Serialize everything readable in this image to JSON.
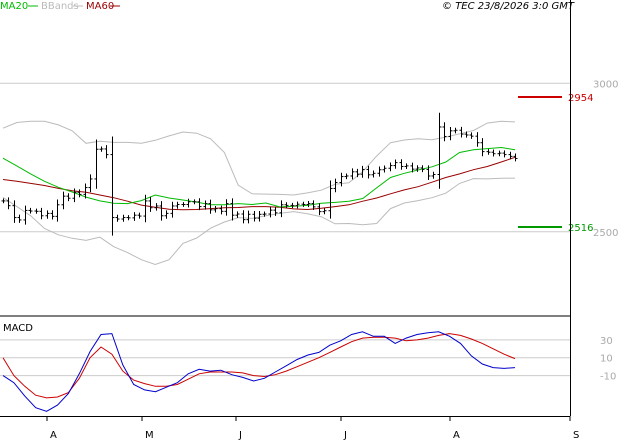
{
  "header": {
    "legend_ma20": "MA20",
    "legend_bbands": "BBands",
    "legend_ma60": "MA60",
    "copyright": "© TEC 23/8/2026 3:0 GMT"
  },
  "colors": {
    "ma20": "#00bb00",
    "ma60": "#990000",
    "bbands": "#bbbbbb",
    "price": "#000000",
    "macd": "#0000cc",
    "signal": "#cc0000",
    "resistance": "#cc0000",
    "support": "#009900",
    "grid": "#cccccc"
  },
  "chart_data": [
    {
      "type": "line",
      "title": "",
      "x_labels": [
        "A",
        "M",
        "J",
        "J",
        "A",
        "S"
      ],
      "ylim": [
        2230,
        3230
      ],
      "y_ticks": [
        "3000",
        "2500"
      ],
      "grid": true,
      "levels": [
        {
          "name": "resistance",
          "value": 2954,
          "label": "2954"
        },
        {
          "name": "support",
          "value": 2516,
          "label": "2516"
        }
      ],
      "series": [
        {
          "name": "Price",
          "kind": "ohlc-bars",
          "values": [
            2604,
            2588,
            2548,
            2540,
            2572,
            2570,
            2569,
            2554,
            2562,
            2552,
            2591,
            2620,
            2613,
            2633,
            2626,
            2649,
            2678,
            2778,
            2779,
            2760,
            2548,
            2543,
            2548,
            2547,
            2556,
            2553,
            2604,
            2581,
            2587,
            2554,
            2562,
            2587,
            2592,
            2592,
            2601,
            2601,
            2585,
            2595,
            2574,
            2578,
            2569,
            2595,
            2556,
            2560,
            2541,
            2559,
            2546,
            2559,
            2560,
            2573,
            2564,
            2591,
            2589,
            2588,
            2593,
            2592,
            2595,
            2584,
            2568,
            2571,
            2646,
            2666,
            2686,
            2688,
            2702,
            2694,
            2710,
            2692,
            2697,
            2709,
            2714,
            2723,
            2733,
            2720,
            2722,
            2711,
            2715,
            2710,
            2688,
            2693,
            2853,
            2821,
            2840,
            2842,
            2829,
            2826,
            2822,
            2800,
            2770,
            2768,
            2763,
            2765,
            2760,
            2754,
            2747
          ]
        },
        {
          "name": "MA20",
          "values": [
            2748,
            2722,
            2695,
            2670,
            2650,
            2634,
            2617,
            2604,
            2596,
            2595,
            2605,
            2624,
            2614,
            2607,
            2600,
            2591,
            2591,
            2595,
            2592,
            2597,
            2584,
            2586,
            2589,
            2596,
            2599,
            2603,
            2612,
            2648,
            2683,
            2697,
            2708,
            2719,
            2735,
            2767,
            2776,
            2780,
            2784,
            2776
          ]
        },
        {
          "name": "MA60",
          "values": [
            2676,
            2670,
            2663,
            2656,
            2646,
            2638,
            2633,
            2624,
            2615,
            2603,
            2590,
            2583,
            2576,
            2574,
            2575,
            2578,
            2581,
            2582,
            2585,
            2585,
            2583,
            2577,
            2575,
            2579,
            2585,
            2591,
            2603,
            2614,
            2628,
            2641,
            2652,
            2667,
            2683,
            2695,
            2709,
            2720,
            2735,
            2751
          ]
        },
        {
          "name": "BBands upper",
          "values": [
            2849,
            2868,
            2872,
            2872,
            2860,
            2840,
            2798,
            2805,
            2801,
            2801,
            2798,
            2808,
            2823,
            2836,
            2832,
            2813,
            2767,
            2657,
            2628,
            2627,
            2626,
            2624,
            2631,
            2640,
            2660,
            2665,
            2703,
            2755,
            2800,
            2809,
            2813,
            2810,
            2819,
            2830,
            2841,
            2866,
            2872,
            2870
          ]
        },
        {
          "name": "BBands lower",
          "values": [
            2616,
            2585,
            2554,
            2511,
            2490,
            2478,
            2471,
            2482,
            2450,
            2430,
            2406,
            2390,
            2406,
            2461,
            2479,
            2512,
            2533,
            2548,
            2545,
            2554,
            2562,
            2568,
            2561,
            2551,
            2527,
            2528,
            2524,
            2528,
            2578,
            2597,
            2605,
            2615,
            2630,
            2663,
            2679,
            2678,
            2680,
            2681
          ]
        }
      ]
    },
    {
      "type": "line",
      "title": "MACD",
      "x_labels": [
        "A",
        "M",
        "J",
        "J",
        "A",
        "S"
      ],
      "ylim": [
        -53,
        50
      ],
      "y_ticks": [
        "30",
        "10",
        "-10"
      ],
      "grid": true,
      "series": [
        {
          "name": "MACD",
          "values": [
            -10,
            -18,
            -33,
            -46,
            -50,
            -43,
            -30,
            -8,
            17,
            36,
            37,
            2,
            -20,
            -26,
            -28,
            -23,
            -18,
            -8,
            -3,
            -5,
            -4,
            -9,
            -12,
            -16,
            -13,
            -6,
            1,
            8,
            13,
            16,
            24,
            29,
            36,
            39,
            34,
            34,
            26,
            32,
            36,
            38,
            39,
            34,
            26,
            12,
            3,
            -1,
            -2,
            -1
          ]
        },
        {
          "name": "Signal",
          "values": [
            10,
            -10,
            -22,
            -32,
            -35,
            -34,
            -29,
            -13,
            10,
            22,
            14,
            -5,
            -15,
            -19,
            -22,
            -22,
            -20,
            -14,
            -8,
            -6,
            -6,
            -6,
            -7,
            -10,
            -11,
            -9,
            -5,
            0,
            5,
            10,
            16,
            22,
            28,
            32,
            33,
            33,
            32,
            29,
            30,
            32,
            35,
            37,
            35,
            31,
            26,
            20,
            14,
            9
          ]
        }
      ]
    }
  ]
}
